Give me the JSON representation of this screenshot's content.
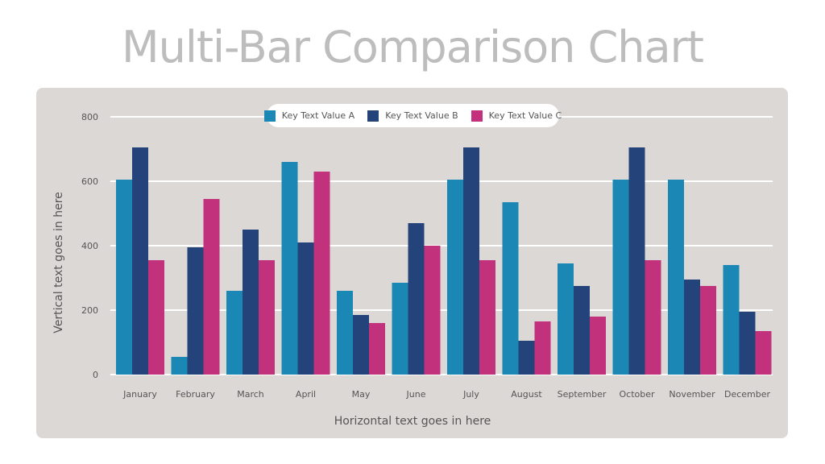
{
  "title": "Multi-Bar Comparison Chart",
  "colors": {
    "background": "#ffffff",
    "panel": "#dcd8d6",
    "series_a": "#1a87b4",
    "series_b": "#24437a",
    "series_c": "#c2317c",
    "gridline": "#ffffff",
    "title": "#bdbdbd",
    "text": "#555555"
  },
  "chart_data": {
    "type": "bar",
    "title": "Multi-Bar Comparison Chart",
    "xlabel": "Horizontal text goes in here",
    "ylabel": "Vertical text goes in here",
    "ylim": [
      0,
      800
    ],
    "yticks": [
      0,
      200,
      400,
      600,
      800
    ],
    "grid": "horizontal",
    "legend_position": "top-center",
    "categories": [
      "January",
      "February",
      "March",
      "April",
      "May",
      "June",
      "July",
      "August",
      "September",
      "October",
      "November",
      "December"
    ],
    "series": [
      {
        "name": "Key Text Value A",
        "values": [
          605,
          55,
          260,
          660,
          260,
          285,
          605,
          535,
          345,
          605,
          605,
          340
        ]
      },
      {
        "name": "Key Text Value B",
        "values": [
          705,
          395,
          450,
          410,
          185,
          470,
          705,
          105,
          275,
          705,
          295,
          195
        ]
      },
      {
        "name": "Key Text Value C",
        "values": [
          355,
          545,
          355,
          630,
          160,
          400,
          355,
          165,
          180,
          355,
          275,
          135
        ]
      }
    ]
  }
}
